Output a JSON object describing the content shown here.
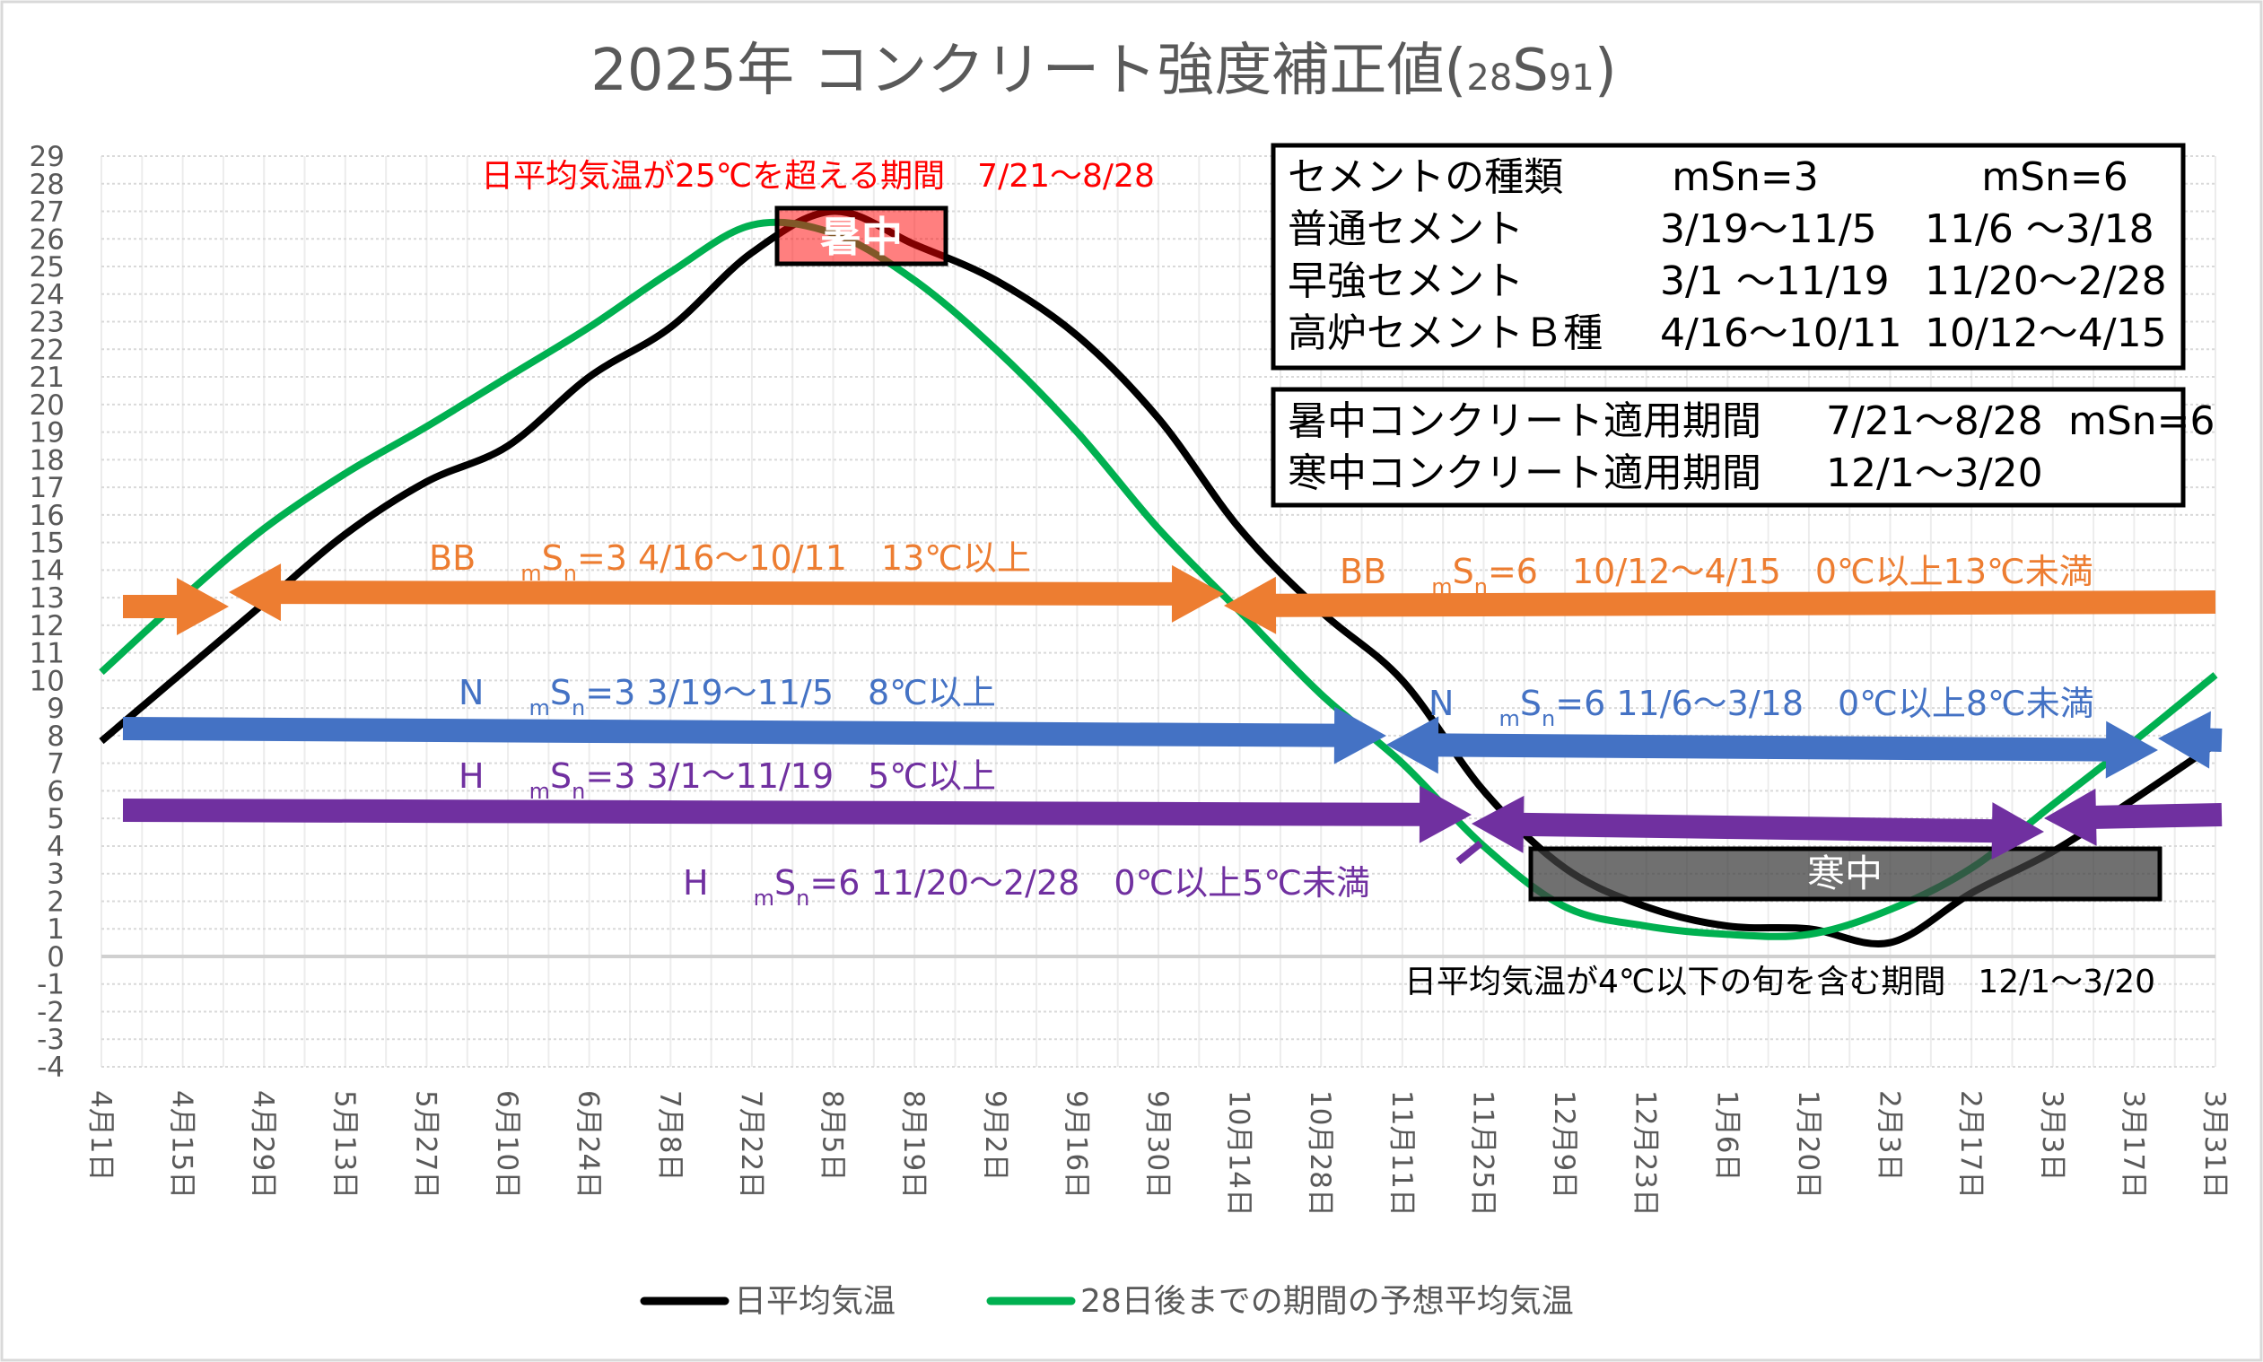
{
  "chart_data": {
    "type": "line",
    "title": "2025年  コンクリート強度補正値(28S91)",
    "title_main": "2025年  コンクリート強度補正値(",
    "title_sub1": "28",
    "title_s": "S",
    "title_sub2": "91",
    "title_close": ")",
    "ylim": [
      -4,
      29
    ],
    "yticks": [
      "29",
      "28",
      "27",
      "26",
      "25",
      "24",
      "23",
      "22",
      "21",
      "20",
      "19",
      "18",
      "17",
      "16",
      "15",
      "14",
      "13",
      "12",
      "11",
      "10",
      "9",
      "8",
      "7",
      "6",
      "5",
      "4",
      "3",
      "2",
      "1",
      "0",
      "-1",
      "-2",
      "-3",
      "-4"
    ],
    "x_start": "4/1",
    "x_days": 364,
    "xtick_labels": [
      "4月1日",
      "4月15日",
      "4月29日",
      "5月13日",
      "5月27日",
      "6月10日",
      "6月24日",
      "7月8日",
      "7月22日",
      "8月5日",
      "8月19日",
      "9月2日",
      "9月16日",
      "9月30日",
      "10月14日",
      "10月28日",
      "11月11日",
      "11月25日",
      "12月9日",
      "12月23日",
      "1月6日",
      "1月20日",
      "2月3日",
      "2月17日",
      "3月3日",
      "3月17日",
      "3月31日"
    ],
    "grid": true,
    "legend_position": "bottom",
    "series": [
      {
        "name": "日平均気温",
        "color": "#000000",
        "values": [
          7.8,
          10.3,
          12.8,
          15.3,
          17.2,
          18.5,
          21.0,
          22.8,
          25.5,
          27.0,
          25.8,
          24.5,
          22.5,
          19.5,
          15.5,
          12.5,
          10.0,
          6.0,
          3.2,
          1.8,
          1.1,
          1.0,
          0.5,
          2.3,
          3.8,
          5.7,
          7.7
        ]
      },
      {
        "name": "28日後までの期間の予想平均気温",
        "color": "#00b050",
        "values": [
          10.3,
          13.0,
          15.5,
          17.5,
          19.2,
          21.0,
          22.8,
          24.8,
          26.5,
          26.2,
          24.5,
          22.0,
          19.0,
          15.5,
          12.5,
          9.5,
          7.0,
          4.0,
          1.8,
          1.1,
          0.8,
          0.8,
          1.7,
          3.2,
          5.5,
          7.8,
          10.2
        ]
      }
    ],
    "annotations": {
      "hot_period": "日平均気温が25℃を超える期間　7/21～8/28",
      "cold_period": "日平均気温が4℃以下の旬を含む期間　12/1～3/20",
      "hot_box": "暑中",
      "cold_box": "寒中",
      "arrow_labels": [
        {
          "type": "BB",
          "msn": "=3  4/16～10/11　13℃以上",
          "color": "#ed7d31"
        },
        {
          "type": "BB",
          "msn": "=6　10/12～4/15　0℃以上13℃未満",
          "color": "#ed7d31"
        },
        {
          "type": "N",
          "msn": "=3  3/19～11/5　8℃以上",
          "color": "#4472c4"
        },
        {
          "type": "N",
          "msn": "=6  11/6～3/18　0℃以上8℃未満",
          "color": "#4472c4"
        },
        {
          "type": "H",
          "msn": "=3  3/1～11/19　5℃以上",
          "color": "#7030a0"
        },
        {
          "type": "H",
          "msn": "=6  11/20～2/28　0℃以上5℃未満",
          "color": "#7030a0"
        }
      ],
      "sub_m": "m",
      "sub_S": "S",
      "sub_n": "n"
    },
    "cement_table": {
      "header": [
        "セメントの種類",
        "mSn=3",
        "mSn=6"
      ],
      "rows": [
        [
          "普通セメント",
          "3/19～11/5",
          "11/6 ～3/18"
        ],
        [
          "早強セメント",
          "3/1 ～11/19",
          "11/20～2/28"
        ],
        [
          "高炉セメントＢ種",
          "4/16～10/11",
          "10/12～4/15"
        ]
      ]
    },
    "period_table": {
      "rows": [
        [
          "暑中コンクリート適用期間",
          "7/21～8/28",
          "mSn=6"
        ],
        [
          "寒中コンクリート適用期間",
          "12/1～3/20",
          ""
        ]
      ]
    }
  }
}
